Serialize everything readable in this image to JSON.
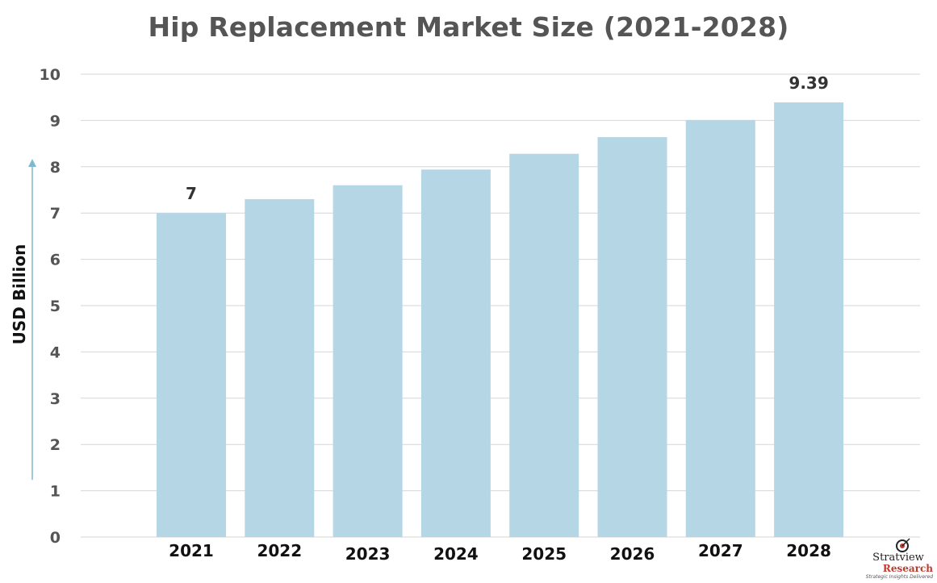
{
  "chart_data": {
    "type": "bar",
    "title": "Hip Replacement Market Size (2021-2028)",
    "xlabel": "",
    "ylabel": "USD Billion",
    "categories": [
      "2021",
      "2022",
      "2023",
      "2024",
      "2025",
      "2026",
      "2027",
      "2028"
    ],
    "values": [
      7,
      7.3,
      7.6,
      7.94,
      8.28,
      8.64,
      9.01,
      9.39
    ],
    "data_labels": [
      {
        "category": "2021",
        "text": "7"
      },
      {
        "category": "2028",
        "text": "9.39"
      }
    ],
    "ylim": [
      0,
      10
    ],
    "yticks": [
      "0",
      "1",
      "2",
      "3",
      "4",
      "5",
      "6",
      "7",
      "8",
      "9",
      "10"
    ],
    "grid": true,
    "bar_color": "#b5d6e5",
    "axis_arrow_color": "#7fb8cf"
  },
  "logo": {
    "main": "Stratview",
    "sub": "Research",
    "tagline": "Strategic Insights Delivered"
  }
}
